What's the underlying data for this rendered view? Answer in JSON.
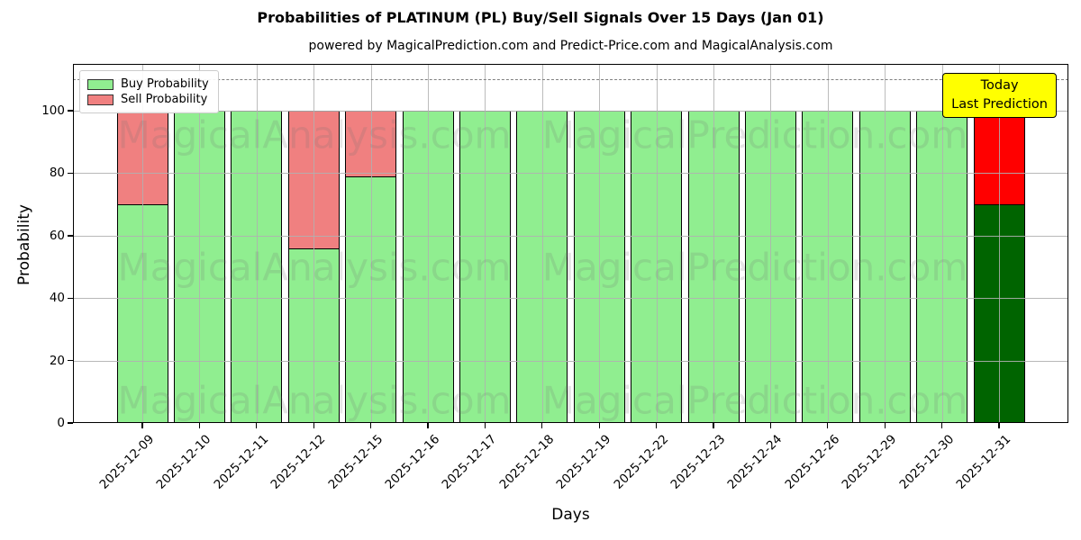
{
  "chart_data": {
    "type": "bar",
    "stacked": true,
    "title": "Probabilities of PLATINUM (PL) Buy/Sell Signals Over 15 Days (Jan 01)",
    "subtitle": "powered by MagicalPrediction.com and Predict-Price.com and MagicalAnalysis.com",
    "xlabel": "Days",
    "ylabel": "Probability",
    "ylim": [
      0,
      115
    ],
    "yticks": [
      0,
      20,
      40,
      60,
      80,
      100
    ],
    "grid": true,
    "legend_position": "upper-left",
    "threshold_dashed_line_y": 110,
    "categories": [
      "2025-12-09",
      "2025-12-10",
      "2025-12-11",
      "2025-12-12",
      "2025-12-15",
      "2025-12-16",
      "2025-12-17",
      "2025-12-18",
      "2025-12-19",
      "2025-12-22",
      "2025-12-23",
      "2025-12-24",
      "2025-12-26",
      "2025-12-29",
      "2025-12-30",
      "2025-12-31"
    ],
    "series": [
      {
        "name": "Buy Probability",
        "color": "#90EE90",
        "final_bar_color": "#006400",
        "values": [
          70,
          100,
          100,
          56,
          79,
          100,
          100,
          100,
          100,
          100,
          100,
          100,
          100,
          100,
          100,
          70
        ]
      },
      {
        "name": "Sell Probability",
        "color": "#F08080",
        "final_bar_color": "#FF0000",
        "values": [
          30,
          0,
          0,
          44,
          21,
          0,
          0,
          0,
          0,
          0,
          0,
          0,
          0,
          0,
          0,
          30
        ]
      }
    ],
    "bar_edge_color": "#000000",
    "annotation_box": {
      "lines": [
        "Today",
        "Last Prediction"
      ],
      "bg_color": "#FFFF00",
      "border_color": "#000000"
    },
    "watermarks": {
      "left_text": "MagicalAnalysis.com",
      "right_text": "MagicalPrediction.com"
    }
  }
}
